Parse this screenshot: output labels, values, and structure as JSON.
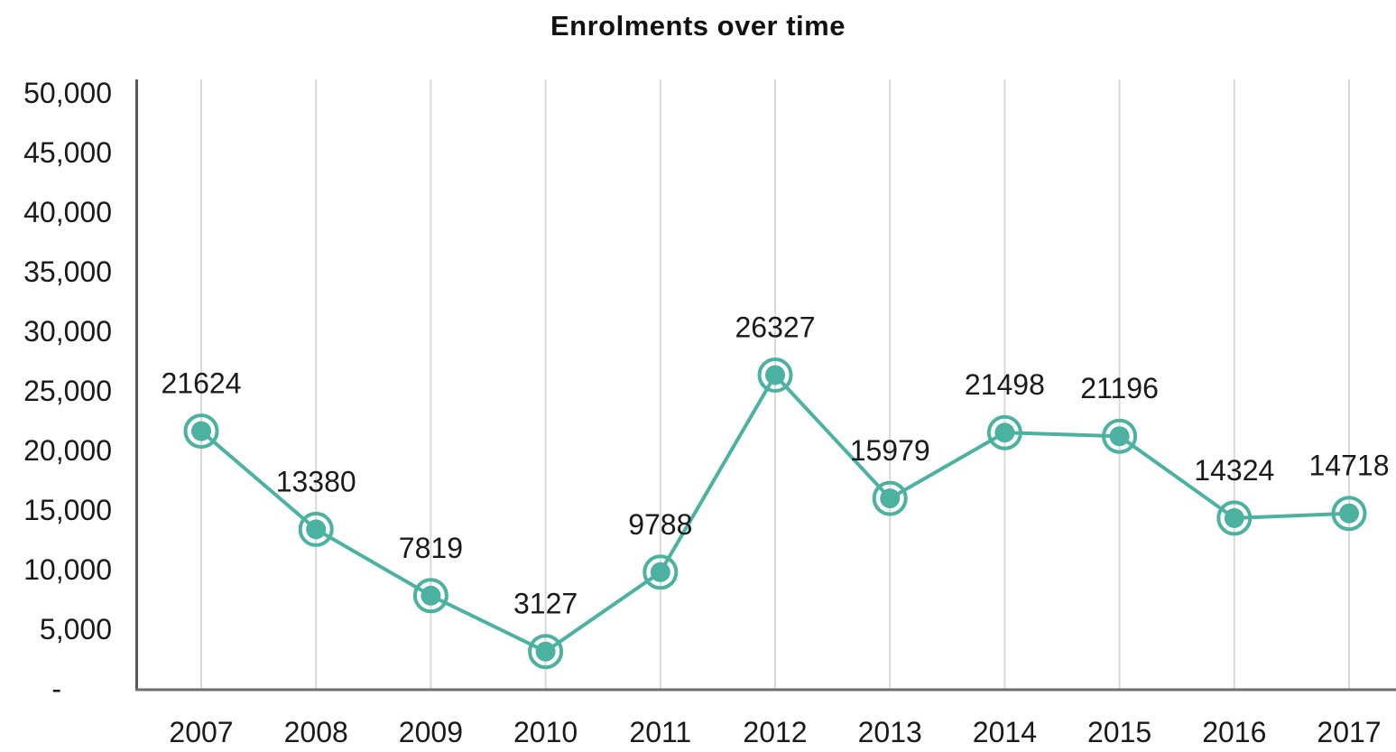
{
  "chart_data": {
    "type": "line",
    "title": "Enrolments over time",
    "categories": [
      "2007",
      "2008",
      "2009",
      "2010",
      "2011",
      "2012",
      "2013",
      "2014",
      "2015",
      "2016",
      "2017"
    ],
    "series": [
      {
        "name": "Enrolments",
        "values": [
          21624,
          13380,
          7819,
          3127,
          9788,
          26327,
          15979,
          21498,
          21196,
          14324,
          14718
        ]
      }
    ],
    "data_labels": [
      "21624",
      "13380",
      "7819",
      "3127",
      "9788",
      "26327",
      "15979",
      "21498",
      "21196",
      "14324",
      "14718"
    ],
    "xlabel": "",
    "ylabel": "",
    "ylim": [
      0,
      50000
    ],
    "y_ticks": [
      {
        "value": 0,
        "label": "-"
      },
      {
        "value": 5000,
        "label": "5,000"
      },
      {
        "value": 10000,
        "label": "10,000"
      },
      {
        "value": 15000,
        "label": "15,000"
      },
      {
        "value": 20000,
        "label": "20,000"
      },
      {
        "value": 25000,
        "label": "25,000"
      },
      {
        "value": 30000,
        "label": "30,000"
      },
      {
        "value": 35000,
        "label": "35,000"
      },
      {
        "value": 40000,
        "label": "40,000"
      },
      {
        "value": 45000,
        "label": "45,000"
      },
      {
        "value": 50000,
        "label": "50,000"
      }
    ],
    "grid": "vertical-only",
    "legend": "none",
    "marker_style": "ring-and-dot",
    "colors": {
      "line": "#4BB2A1",
      "marker": "#4BB2A1",
      "text": "#1a1a1a",
      "gridline": "#D9D9D9",
      "y_axis_line": "#595959",
      "x_axis_line": "#6E6E6E"
    }
  }
}
